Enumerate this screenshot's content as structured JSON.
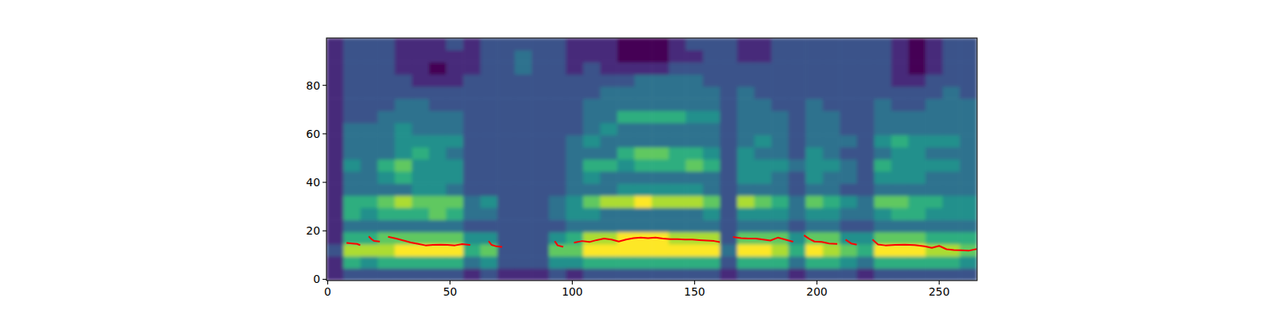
{
  "chart_data": {
    "type": "heatmap",
    "color": "viridis",
    "xlim": [
      -0.5,
      265.5
    ],
    "ylim": [
      -0.5,
      99.5
    ],
    "xticks": [
      0,
      50,
      100,
      150,
      200,
      250
    ],
    "yticks": [
      0,
      20,
      40,
      60,
      80
    ],
    "cells": [
      [
        2,
        2,
        3,
        2,
        2,
        2,
        2,
        2,
        2,
        2,
        2,
        2,
        2,
        2,
        2,
        2,
        2,
        2,
        2,
        2
      ],
      [
        3,
        6,
        8,
        6,
        4,
        6,
        6,
        4,
        4,
        5,
        4,
        4,
        4,
        3,
        3,
        3,
        3,
        3,
        3,
        3
      ],
      [
        3,
        5,
        8,
        6,
        4,
        5,
        6,
        4,
        4,
        4,
        4,
        4,
        4,
        3,
        3,
        3,
        3,
        3,
        3,
        3
      ],
      [
        3,
        6,
        8,
        7,
        4,
        6,
        7,
        4,
        5,
        6,
        4,
        4,
        4,
        4,
        3,
        3,
        3,
        3,
        3,
        3
      ],
      [
        3,
        6,
        9,
        7,
        4,
        6,
        8,
        4,
        6,
        7,
        5,
        5,
        5,
        4,
        4,
        3,
        3,
        2,
        2,
        2
      ],
      [
        3,
        6,
        9,
        7,
        4,
        6,
        7,
        5,
        5,
        5,
        6,
        5,
        4,
        4,
        4,
        3,
        2,
        2,
        2,
        2
      ],
      [
        3,
        6,
        9,
        7,
        4,
        7,
        7,
        5,
        5,
        5,
        5,
        5,
        4,
        4,
        3,
        3,
        2,
        1,
        2,
        2
      ],
      [
        3,
        6,
        9,
        7,
        4,
        6,
        7,
        4,
        5,
        5,
        4,
        5,
        4,
        4,
        3,
        3,
        2,
        2,
        2,
        3
      ],
      [
        2,
        4,
        6,
        5,
        3,
        4,
        4,
        3,
        3,
        3,
        3,
        3,
        3,
        3,
        3,
        3,
        3,
        2,
        2,
        2
      ],
      [
        3,
        5,
        7,
        5,
        3,
        4,
        5,
        3,
        3,
        3,
        3,
        3,
        3,
        3,
        3,
        3,
        3,
        3,
        3,
        3
      ],
      [
        2,
        3,
        3,
        3,
        3,
        3,
        3,
        3,
        3,
        3,
        3,
        3,
        3,
        3,
        3,
        3,
        3,
        3,
        3,
        3
      ],
      [
        2,
        3,
        3,
        3,
        3,
        3,
        3,
        3,
        3,
        3,
        3,
        3,
        3,
        3,
        3,
        3,
        3,
        4,
        4,
        3
      ],
      [
        2,
        3,
        3,
        3,
        3,
        3,
        3,
        3,
        3,
        3,
        3,
        3,
        3,
        3,
        3,
        3,
        3,
        3,
        3,
        3
      ],
      [
        3,
        5,
        7,
        5,
        3,
        4,
        4,
        3,
        3,
        3,
        3,
        3,
        3,
        3,
        3,
        3,
        3,
        3,
        3,
        3
      ],
      [
        2,
        5,
        7,
        6,
        4,
        5,
        5,
        4,
        4,
        4,
        4,
        4,
        3,
        3,
        3,
        3,
        3,
        2,
        2,
        2
      ],
      [
        3,
        6,
        9,
        8,
        4,
        5,
        7,
        4,
        5,
        6,
        4,
        5,
        4,
        4,
        4,
        3,
        3,
        3,
        2,
        2
      ],
      [
        3,
        6,
        9,
        8,
        4,
        4,
        8,
        4,
        4,
        6,
        4,
        4,
        5,
        4,
        4,
        4,
        3,
        2,
        2,
        2
      ],
      [
        3,
        6,
        9,
        9,
        4,
        4,
        8,
        5,
        4,
        5,
        6,
        4,
        4,
        6,
        4,
        4,
        3,
        2,
        1,
        1
      ],
      [
        3,
        6,
        9,
        9,
        4,
        4,
        9,
        5,
        4,
        6,
        7,
        4,
        4,
        6,
        4,
        4,
        4,
        2,
        1,
        1
      ],
      [
        3,
        6,
        9,
        9,
        4,
        4,
        8,
        5,
        4,
        6,
        7,
        4,
        4,
        6,
        4,
        4,
        4,
        2,
        1,
        1
      ],
      [
        3,
        6,
        9,
        8,
        4,
        4,
        8,
        5,
        4,
        6,
        6,
        4,
        4,
        6,
        4,
        4,
        4,
        3,
        2,
        2
      ],
      [
        3,
        6,
        9,
        8,
        4,
        4,
        8,
        5,
        4,
        7,
        6,
        4,
        4,
        5,
        4,
        4,
        4,
        3,
        2,
        3
      ],
      [
        3,
        6,
        9,
        8,
        4,
        5,
        7,
        4,
        4,
        6,
        5,
        4,
        4,
        5,
        4,
        4,
        3,
        3,
        3,
        3
      ],
      [
        2,
        3,
        4,
        3,
        3,
        3,
        3,
        3,
        3,
        3,
        3,
        3,
        3,
        3,
        3,
        3,
        3,
        3,
        3,
        3
      ],
      [
        3,
        6,
        9,
        7,
        4,
        5,
        8,
        4,
        5,
        5,
        5,
        4,
        4,
        4,
        4,
        4,
        3,
        3,
        2,
        2
      ],
      [
        3,
        6,
        9,
        7,
        4,
        5,
        7,
        4,
        5,
        5,
        4,
        5,
        4,
        4,
        4,
        3,
        3,
        3,
        2,
        2
      ],
      [
        3,
        6,
        8,
        7,
        4,
        5,
        6,
        4,
        4,
        5,
        4,
        4,
        4,
        4,
        3,
        3,
        3,
        3,
        3,
        3
      ],
      [
        2,
        4,
        6,
        5,
        3,
        4,
        4,
        3,
        3,
        4,
        3,
        3,
        3,
        3,
        3,
        3,
        3,
        3,
        3,
        3
      ],
      [
        3,
        6,
        9,
        7,
        4,
        5,
        7,
        4,
        5,
        5,
        5,
        4,
        4,
        4,
        4,
        3,
        3,
        3,
        3,
        3
      ],
      [
        3,
        6,
        8,
        7,
        4,
        5,
        6,
        4,
        4,
        5,
        4,
        4,
        4,
        4,
        3,
        3,
        3,
        3,
        3,
        3
      ],
      [
        3,
        5,
        7,
        5,
        3,
        4,
        5,
        3,
        4,
        4,
        3,
        4,
        3,
        3,
        3,
        3,
        3,
        3,
        3,
        3
      ],
      [
        2,
        4,
        6,
        5,
        3,
        4,
        4,
        3,
        3,
        3,
        3,
        3,
        3,
        3,
        3,
        3,
        3,
        3,
        3,
        3
      ],
      [
        3,
        6,
        9,
        7,
        4,
        5,
        7,
        4,
        5,
        6,
        4,
        5,
        4,
        4,
        4,
        3,
        3,
        3,
        3,
        3
      ],
      [
        3,
        6,
        9,
        7,
        4,
        6,
        7,
        4,
        5,
        5,
        5,
        6,
        4,
        4,
        3,
        3,
        2,
        2,
        2,
        2
      ],
      [
        3,
        6,
        9,
        7,
        4,
        6,
        6,
        4,
        5,
        5,
        5,
        5,
        4,
        4,
        3,
        3,
        2,
        1,
        1,
        1
      ],
      [
        3,
        6,
        8,
        6,
        4,
        5,
        6,
        4,
        4,
        5,
        4,
        5,
        4,
        4,
        4,
        3,
        3,
        2,
        2,
        2
      ],
      [
        3,
        6,
        8,
        6,
        4,
        5,
        5,
        4,
        4,
        5,
        4,
        5,
        4,
        4,
        4,
        4,
        3,
        3,
        3,
        3
      ],
      [
        3,
        5,
        7,
        6,
        4,
        5,
        5,
        4,
        4,
        4,
        4,
        4,
        4,
        4,
        4,
        3,
        3,
        3,
        3,
        3
      ]
    ],
    "series": [
      {
        "type": "line",
        "color": "#ff0000",
        "x": [
          8,
          10,
          12,
          13,
          15,
          17,
          18,
          19,
          21,
          23,
          25,
          28,
          31,
          34,
          37,
          40,
          43,
          46,
          49,
          52,
          55,
          58,
          60,
          66,
          67,
          69,
          71,
          80,
          93,
          94,
          96,
          98,
          101,
          104,
          107,
          110,
          113,
          116,
          119,
          122,
          125,
          128,
          131,
          134,
          137,
          140,
          143,
          146,
          149,
          152,
          155,
          158,
          160,
          163,
          166,
          169,
          172,
          175,
          178,
          181,
          184,
          187,
          190,
          192,
          195,
          197,
          199,
          202,
          205,
          208,
          210,
          212,
          214,
          216,
          220,
          223,
          225,
          228,
          232,
          236,
          240,
          244,
          247,
          250,
          253,
          256,
          259,
          262,
          265
        ],
        "values": [
          15,
          14.8,
          14.6,
          14.2,
          null,
          17.5,
          16.5,
          15.8,
          15.6,
          null,
          17.5,
          16.8,
          16,
          15.2,
          14.6,
          14,
          14.2,
          14.3,
          14.2,
          14,
          14.5,
          14.2,
          null,
          15.5,
          14.2,
          13.6,
          13.4,
          null,
          15.5,
          14,
          13.5,
          null,
          15.2,
          15.8,
          15.4,
          16.2,
          16.8,
          16.4,
          15.6,
          16.4,
          17,
          17.2,
          17,
          17.2,
          16.8,
          16.6,
          16.6,
          16.4,
          16.4,
          16.2,
          16,
          15.8,
          15.4,
          null,
          17.4,
          17,
          16.8,
          16.8,
          16.4,
          16,
          17.2,
          16.4,
          15.6,
          null,
          18,
          16.6,
          15.6,
          15.4,
          14.8,
          14.6,
          null,
          16.2,
          14.8,
          14.4,
          null,
          16.2,
          14.4,
          14,
          14.2,
          14.3,
          14.1,
          13.6,
          13,
          13.8,
          12.4,
          12.1,
          12,
          11.8,
          12.4
        ]
      }
    ]
  }
}
